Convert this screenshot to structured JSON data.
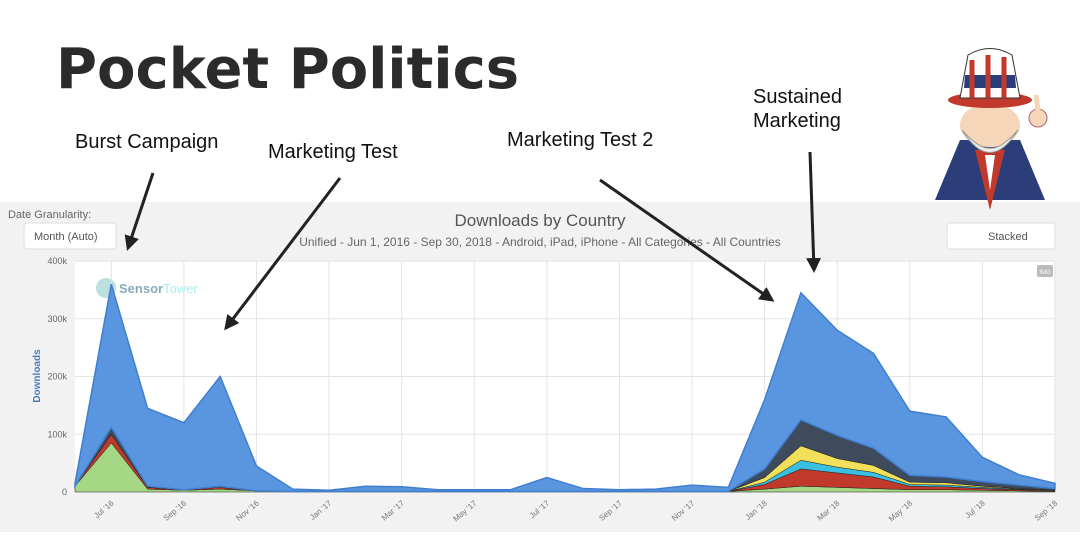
{
  "title": "Pocket Politics",
  "annotations": {
    "burst": "Burst Campaign",
    "test": "Marketing Test",
    "test2": "Marketing Test 2",
    "sustained": [
      "Sustained",
      "Marketing"
    ]
  },
  "controls": {
    "granularity_label": "Date Granularity:",
    "granularity_value": "Month (Auto)",
    "chart_mode": "Stacked",
    "export": "IMG",
    "watermark": [
      "Sensor",
      "Tower"
    ]
  },
  "chart_data": {
    "type": "stacked_area",
    "title": "Downloads by Country",
    "subtitle": "Unified - Jun 1, 2016 - Sep 30, 2018 - Android, iPad, iPhone - All Categories - All Countries",
    "y_label": "Downloads",
    "categories": [
      null,
      "Jul '16",
      null,
      "Sep '16",
      null,
      "Nov '16",
      null,
      "Jan '17",
      null,
      "Mar '17",
      null,
      "May '17",
      null,
      "Jul '17",
      null,
      "Sep '17",
      null,
      "Nov '17",
      null,
      "Jan '18",
      null,
      "Mar '18",
      null,
      "May '18",
      null,
      "Jul '18",
      null,
      "Sep '18"
    ],
    "ylim": [
      0,
      400000
    ],
    "yticks": [
      0,
      {
        "value": 100000,
        "label": "100k"
      },
      {
        "value": 200000,
        "label": "200k"
      },
      {
        "value": 300000,
        "label": "300k"
      },
      {
        "value": 400000,
        "label": "400k"
      }
    ],
    "grid": true,
    "series": [
      {
        "color": "#a6d785",
        "values": [
          10000,
          85000,
          5000,
          3000,
          5000,
          2000,
          1000,
          1000,
          1000,
          1000,
          1000,
          1000,
          1000,
          1000,
          1000,
          1000,
          1000,
          1000,
          1000,
          5000,
          10000,
          8000,
          6000,
          4000,
          4000,
          3000,
          2000,
          1000
        ]
      },
      {
        "color": "#c0392b",
        "values": [
          0,
          15000,
          3000,
          1000,
          3000,
          0,
          0,
          0,
          0,
          0,
          0,
          0,
          0,
          0,
          0,
          0,
          0,
          0,
          0,
          8000,
          30000,
          25000,
          20000,
          6000,
          5000,
          3000,
          2000,
          1000
        ]
      },
      {
        "color": "#3bbfe0",
        "values": [
          0,
          0,
          0,
          0,
          0,
          0,
          0,
          0,
          0,
          0,
          0,
          0,
          0,
          0,
          0,
          0,
          0,
          0,
          0,
          4000,
          15000,
          10000,
          8000,
          3000,
          3000,
          2000,
          1000,
          0
        ]
      },
      {
        "color": "#f3e05a",
        "values": [
          0,
          0,
          0,
          0,
          2000,
          0,
          0,
          0,
          0,
          0,
          0,
          0,
          0,
          0,
          0,
          0,
          0,
          0,
          0,
          8000,
          25000,
          15000,
          12000,
          4000,
          4000,
          2000,
          1000,
          1000
        ]
      },
      {
        "color": "#3d4b5c",
        "values": [
          0,
          12000,
          2000,
          0,
          0,
          0,
          0,
          0,
          0,
          0,
          0,
          0,
          0,
          0,
          0,
          0,
          0,
          0,
          0,
          15000,
          45000,
          40000,
          30000,
          12000,
          10000,
          8000,
          6000,
          3000
        ]
      },
      {
        "color": "#5a96e0",
        "values": [
          5000,
          248000,
          135000,
          116000,
          190000,
          43000,
          4000,
          2000,
          9000,
          8000,
          3000,
          3000,
          3000,
          24000,
          5000,
          3000,
          4000,
          11000,
          7000,
          120000,
          220000,
          182000,
          164000,
          111000,
          104000,
          42000,
          18000,
          9000
        ]
      }
    ]
  }
}
